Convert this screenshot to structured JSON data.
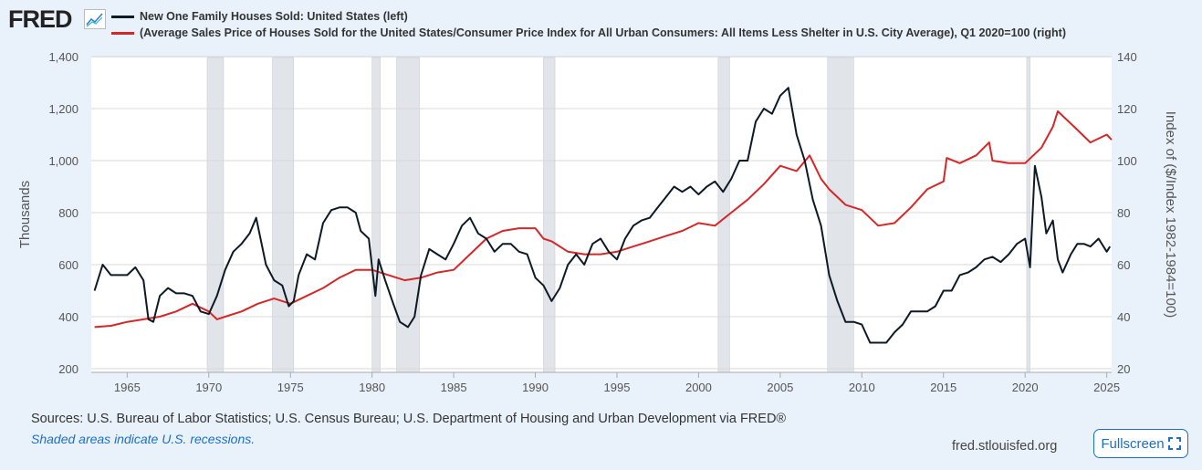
{
  "header": {
    "logo": "FRED",
    "logo_icon": "line-chart-icon"
  },
  "footer": {
    "sources": "Sources: U.S. Bureau of Labor Statistics; U.S. Census Bureau; U.S. Department of Housing and Urban Development via FRED®",
    "note": "Shaded areas indicate U.S. recessions.",
    "site": "fred.stlouisfed.org",
    "fullscreen": "Fullscreen"
  },
  "colors": {
    "left": "#0d1a26",
    "right": "#d62728",
    "recession": "#e1e5ea"
  },
  "chart_data": {
    "type": "line",
    "title": "",
    "xticks": [
      1965,
      1970,
      1975,
      1980,
      1985,
      1990,
      1995,
      2000,
      2005,
      2010,
      2015,
      2020,
      2025
    ],
    "xlim": [
      1962.8,
      2025.3
    ],
    "left_axis": {
      "label": "Thousands",
      "ylim": [
        200,
        1400
      ],
      "ticks": [
        "200",
        "400",
        "600",
        "800",
        "1,000",
        "1,200",
        "1,400"
      ]
    },
    "right_axis": {
      "label": "Index of ($/Index 1982-1984=100)",
      "ylim": [
        20,
        140
      ],
      "ticks": [
        "20",
        "40",
        "60",
        "80",
        "100",
        "120",
        "140"
      ]
    },
    "recessions": [
      [
        1969.9,
        1970.9
      ],
      [
        1973.9,
        1975.2
      ],
      [
        1980.0,
        1980.5
      ],
      [
        1981.5,
        1982.9
      ],
      [
        1990.5,
        1991.2
      ],
      [
        2001.2,
        2001.9
      ],
      [
        2007.9,
        2009.5
      ],
      [
        2020.1,
        2020.3
      ]
    ],
    "series": [
      {
        "name": "New One Family Houses Sold: United States (left)",
        "axis": "left",
        "x": [
          1963,
          1963.5,
          1964,
          1965,
          1965.5,
          1966,
          1966.3,
          1966.6,
          1967,
          1967.5,
          1968,
          1968.5,
          1969,
          1969.5,
          1970,
          1970.5,
          1971,
          1971.5,
          1972,
          1972.5,
          1972.9,
          1973.5,
          1974,
          1974.5,
          1974.9,
          1975.2,
          1975.5,
          1976,
          1976.5,
          1977,
          1977.5,
          1978,
          1978.5,
          1979,
          1979.3,
          1979.8,
          1980.2,
          1980.4,
          1980.8,
          1981.3,
          1981.7,
          1982.2,
          1982.6,
          1983,
          1983.5,
          1984,
          1984.5,
          1985,
          1985.5,
          1986,
          1986.5,
          1987,
          1987.5,
          1988,
          1988.5,
          1989,
          1989.5,
          1990,
          1990.5,
          1991,
          1991.5,
          1992,
          1992.5,
          1993,
          1993.5,
          1994,
          1994.5,
          1995,
          1995.5,
          1996,
          1996.5,
          1997,
          1997.5,
          1998,
          1998.5,
          1999,
          1999.5,
          2000,
          2000.5,
          2001,
          2001.5,
          2002,
          2002.5,
          2003,
          2003.5,
          2004,
          2004.5,
          2005,
          2005.5,
          2006,
          2006.5,
          2007,
          2007.5,
          2008,
          2008.5,
          2009,
          2009.5,
          2010,
          2010.5,
          2011,
          2011.5,
          2012,
          2012.5,
          2013,
          2013.5,
          2014,
          2014.5,
          2015,
          2015.5,
          2016,
          2016.5,
          2017,
          2017.5,
          2018,
          2018.5,
          2019,
          2019.5,
          2020,
          2020.3,
          2020.6,
          2021,
          2021.3,
          2021.7,
          2022,
          2022.3,
          2022.8,
          2023.2,
          2023.6,
          2024,
          2024.5,
          2025,
          2025.2
        ],
        "values": [
          500,
          600,
          560,
          560,
          590,
          540,
          390,
          380,
          480,
          510,
          490,
          490,
          480,
          420,
          410,
          480,
          580,
          650,
          680,
          720,
          780,
          600,
          540,
          520,
          440,
          460,
          560,
          640,
          620,
          760,
          810,
          820,
          820,
          800,
          730,
          700,
          480,
          620,
          540,
          450,
          380,
          360,
          400,
          560,
          660,
          640,
          620,
          680,
          750,
          780,
          720,
          700,
          650,
          680,
          680,
          650,
          640,
          550,
          520,
          460,
          510,
          600,
          640,
          600,
          680,
          700,
          650,
          620,
          700,
          750,
          770,
          780,
          820,
          860,
          900,
          880,
          900,
          870,
          900,
          920,
          880,
          930,
          1000,
          1000,
          1150,
          1200,
          1180,
          1250,
          1280,
          1100,
          1000,
          850,
          750,
          560,
          460,
          380,
          380,
          370,
          300,
          300,
          300,
          340,
          370,
          420,
          420,
          420,
          440,
          500,
          500,
          560,
          570,
          590,
          620,
          630,
          610,
          640,
          680,
          700,
          590,
          980,
          860,
          720,
          770,
          620,
          570,
          640,
          680,
          680,
          670,
          700,
          650,
          670
        ]
      },
      {
        "name": "(Average Sales Price of Houses Sold for the United States/Consumer Price Index for All Urban Consumers: All Items Less Shelter in U.S. City Average), Q1 2020=100 (right)",
        "axis": "right",
        "x": [
          1963,
          1964,
          1965,
          1966,
          1967,
          1968,
          1969,
          1970,
          1970.5,
          1971,
          1972,
          1973,
          1974,
          1975,
          1976,
          1977,
          1978,
          1979,
          1980,
          1981,
          1982,
          1983,
          1984,
          1985,
          1986,
          1987,
          1988,
          1989,
          1990,
          1990.5,
          1991,
          1992,
          1993,
          1994,
          1995,
          1996,
          1997,
          1998,
          1999,
          2000,
          2001,
          2002,
          2003,
          2004,
          2005,
          2006,
          2006.8,
          2007.5,
          2008,
          2009,
          2010,
          2011,
          2012,
          2013,
          2014,
          2015,
          2015.2,
          2016,
          2017,
          2017.8,
          2018,
          2019,
          2020,
          2021,
          2021.7,
          2022,
          2022.5,
          2023,
          2023.5,
          2024,
          2025,
          2025.3
        ],
        "values": [
          36,
          36.5,
          38,
          39,
          40,
          42,
          45,
          42,
          39,
          40,
          42,
          45,
          47,
          45,
          48,
          51,
          55,
          58,
          58,
          56,
          54,
          55,
          57,
          58,
          64,
          70,
          73,
          74,
          74,
          70,
          69,
          65,
          64,
          64,
          65,
          67,
          69,
          71,
          73,
          76,
          75,
          80,
          85,
          91,
          98,
          96,
          102,
          93,
          89,
          83,
          81,
          75,
          76,
          82,
          89,
          92,
          101,
          99,
          102,
          107,
          100,
          99,
          99,
          105,
          113,
          119,
          116,
          113,
          110,
          107,
          110,
          108
        ]
      }
    ]
  }
}
